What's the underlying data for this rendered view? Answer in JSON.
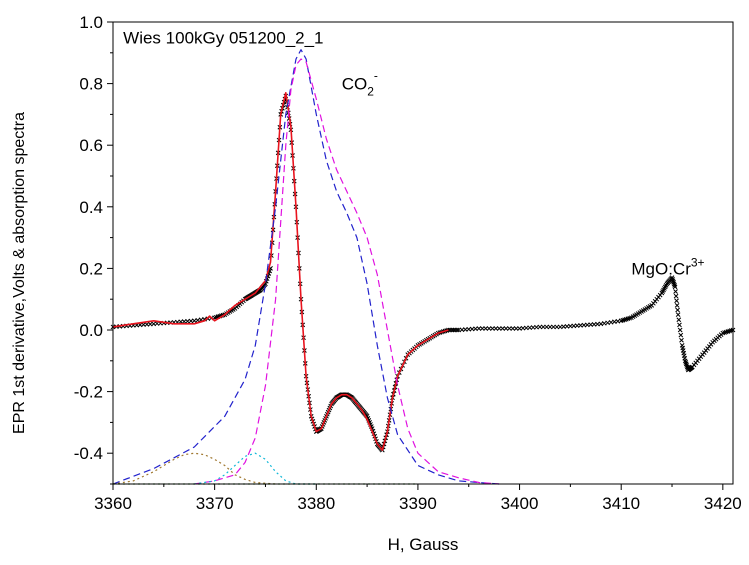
{
  "chart_data": {
    "type": "line",
    "xlabel": "H, Gauss",
    "ylabel": "EPR 1st derivative,Volts & absorption spectra",
    "xlim": [
      3360,
      3421
    ],
    "ylim": [
      -0.5,
      1.0
    ],
    "x_ticks": [
      3360,
      3370,
      3380,
      3390,
      3400,
      3410,
      3420
    ],
    "y_ticks": [
      -0.4,
      -0.2,
      0.0,
      0.2,
      0.4,
      0.6,
      0.8,
      1.0
    ],
    "x_tick_labels": [
      "3360",
      "3370",
      "3380",
      "3390",
      "3400",
      "3410",
      "3420"
    ],
    "y_tick_labels": [
      "-0.4",
      "-0.2",
      "0.0",
      "0.2",
      "0.4",
      "0.6",
      "0.8",
      "1.0"
    ],
    "grid": false,
    "legend": "none",
    "annotations": [
      {
        "text": "Wies 100kGy 051200_2_1",
        "x": 3361,
        "y": 0.95
      },
      {
        "text": "CO",
        "sub": "2",
        "sup": "-",
        "x": 3382.5,
        "y": 0.8
      },
      {
        "text": "MgO:Cr",
        "sup": "3+",
        "x": 3411,
        "y": 0.2
      }
    ],
    "series": [
      {
        "style": "x-markers",
        "color": "#000000",
        "x": [
          3360,
          3362,
          3364,
          3366,
          3368,
          3370,
          3371,
          3372,
          3373,
          3373.5,
          3374,
          3374.5,
          3375,
          3375.5,
          3376,
          3376.5,
          3377,
          3377.5,
          3378,
          3378.5,
          3379,
          3379.5,
          3380,
          3380.5,
          3381,
          3381.5,
          3382,
          3382.5,
          3383,
          3383.5,
          3384,
          3384.5,
          3385,
          3385.5,
          3386,
          3386.5,
          3387,
          3387.5,
          3388,
          3389,
          3390,
          3391,
          3392,
          3393,
          3394,
          3396,
          3398,
          3400,
          3402,
          3404,
          3406,
          3408,
          3410,
          3411,
          3412,
          3413,
          3414,
          3414.5,
          3415,
          3415.3,
          3415.6,
          3416,
          3416.3,
          3416.6,
          3417,
          3418,
          3419,
          3420,
          3421
        ],
        "y": [
          0.01,
          0.015,
          0.02,
          0.025,
          0.03,
          0.04,
          0.05,
          0.07,
          0.1,
          0.11,
          0.12,
          0.13,
          0.15,
          0.2,
          0.45,
          0.7,
          0.76,
          0.65,
          0.4,
          0.1,
          -0.15,
          -0.28,
          -0.33,
          -0.32,
          -0.28,
          -0.24,
          -0.22,
          -0.21,
          -0.21,
          -0.22,
          -0.24,
          -0.26,
          -0.28,
          -0.32,
          -0.37,
          -0.39,
          -0.33,
          -0.22,
          -0.15,
          -0.08,
          -0.05,
          -0.03,
          -0.01,
          0.0,
          0.0,
          0.005,
          0.005,
          0.005,
          0.01,
          0.01,
          0.015,
          0.02,
          0.03,
          0.04,
          0.06,
          0.08,
          0.12,
          0.15,
          0.17,
          0.14,
          0.05,
          -0.05,
          -0.1,
          -0.13,
          -0.12,
          -0.08,
          -0.04,
          -0.01,
          0.0
        ]
      },
      {
        "style": "solid",
        "color": "#e8141e",
        "x": [
          3360,
          3362,
          3364,
          3366,
          3368,
          3369,
          3369.5,
          3370,
          3371,
          3372,
          3373,
          3374,
          3375,
          3375.5,
          3376,
          3376.5,
          3377,
          3377.5,
          3378,
          3378.5,
          3379,
          3379.5,
          3380,
          3380.5,
          3381,
          3381.5,
          3382,
          3382.5,
          3383,
          3383.5,
          3384,
          3384.5,
          3385,
          3385.5,
          3386,
          3386.5,
          3387,
          3387.5,
          3388,
          3389,
          3390,
          3391,
          3392,
          3393
        ],
        "y": [
          0.01,
          0.02,
          0.03,
          0.02,
          0.02,
          0.03,
          0.045,
          0.03,
          0.05,
          0.08,
          0.1,
          0.12,
          0.16,
          0.22,
          0.45,
          0.7,
          0.77,
          0.66,
          0.4,
          0.1,
          -0.15,
          -0.28,
          -0.33,
          -0.32,
          -0.28,
          -0.24,
          -0.22,
          -0.21,
          -0.21,
          -0.22,
          -0.24,
          -0.26,
          -0.29,
          -0.33,
          -0.37,
          -0.39,
          -0.33,
          -0.22,
          -0.15,
          -0.08,
          -0.05,
          -0.03,
          -0.01,
          0.0
        ]
      },
      {
        "style": "dashed",
        "color": "#2222cc",
        "x": [
          3360,
          3364,
          3368,
          3371,
          3373,
          3374,
          3375,
          3376,
          3377,
          3378,
          3378.5,
          3379,
          3380,
          3381,
          3382,
          3383,
          3384,
          3385,
          3386,
          3387,
          3388,
          3390,
          3392,
          3394,
          3396,
          3398
        ],
        "y": [
          -0.5,
          -0.45,
          -0.38,
          -0.28,
          -0.16,
          -0.05,
          0.15,
          0.4,
          0.7,
          0.88,
          0.91,
          0.88,
          0.7,
          0.55,
          0.45,
          0.38,
          0.3,
          0.15,
          -0.05,
          -0.22,
          -0.34,
          -0.44,
          -0.47,
          -0.49,
          -0.495,
          -0.5
        ]
      },
      {
        "style": "dashed",
        "color": "#e012e0",
        "x": [
          3368,
          3370,
          3372,
          3373,
          3374,
          3375,
          3376,
          3376.5,
          3377,
          3377.5,
          3378,
          3378.5,
          3379,
          3380,
          3381,
          3382,
          3383,
          3384,
          3385,
          3386,
          3387,
          3388,
          3389,
          3390,
          3392,
          3394,
          3396,
          3398
        ],
        "y": [
          -0.5,
          -0.49,
          -0.47,
          -0.43,
          -0.35,
          -0.18,
          0.1,
          0.35,
          0.6,
          0.78,
          0.86,
          0.88,
          0.87,
          0.75,
          0.62,
          0.52,
          0.45,
          0.38,
          0.3,
          0.18,
          0.0,
          -0.18,
          -0.32,
          -0.4,
          -0.46,
          -0.48,
          -0.495,
          -0.5
        ]
      },
      {
        "style": "dotted",
        "color": "#a07830",
        "x": [
          3360,
          3362,
          3364,
          3366,
          3367,
          3368,
          3369,
          3370,
          3371,
          3372,
          3373,
          3374,
          3376
        ],
        "y": [
          -0.5,
          -0.49,
          -0.46,
          -0.42,
          -0.405,
          -0.4,
          -0.405,
          -0.42,
          -0.44,
          -0.47,
          -0.485,
          -0.495,
          -0.5
        ]
      },
      {
        "style": "dotted",
        "color": "#10b8d8",
        "x": [
          3368,
          3370,
          3371,
          3372,
          3373,
          3374,
          3375,
          3376,
          3377,
          3378,
          3380
        ],
        "y": [
          -0.5,
          -0.49,
          -0.47,
          -0.44,
          -0.41,
          -0.4,
          -0.42,
          -0.46,
          -0.49,
          -0.5,
          -0.5
        ]
      },
      {
        "style": "dotted",
        "color": "#208020",
        "x": [
          3360,
          3365,
          3370,
          3375,
          3380,
          3385,
          3390
        ],
        "y": [
          -0.5,
          -0.5,
          -0.5,
          -0.5,
          -0.5,
          -0.5,
          -0.5
        ]
      }
    ]
  }
}
